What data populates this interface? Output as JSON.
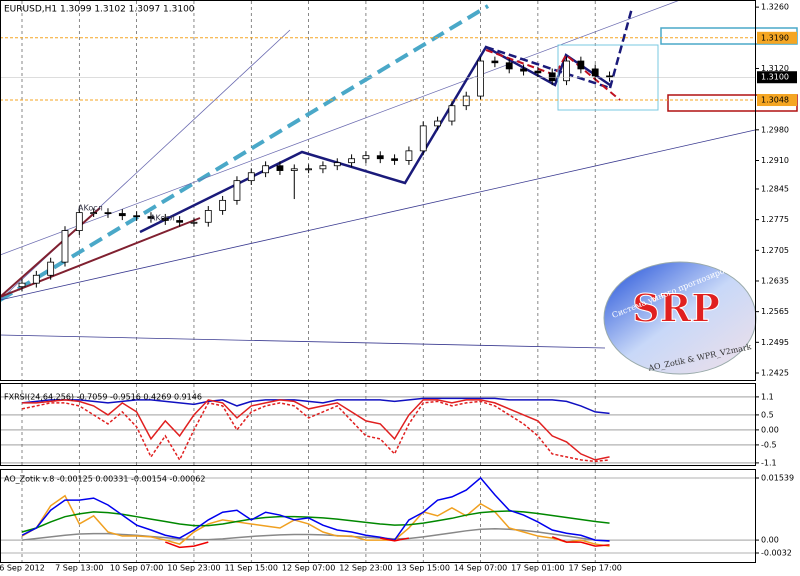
{
  "chart_data": [
    {
      "type": "candlestick",
      "title": "EURUSD,H1  1.3099 1.3102 1.3097 1.3100",
      "categories": [
        "6 Sep 2012",
        null,
        null,
        null,
        "7 Sep 13:00",
        null,
        null,
        null,
        "10 Sep 07:00",
        null,
        null,
        null,
        "10 Sep 23:00",
        null,
        null,
        null,
        "11 Sep 15:00",
        null,
        null,
        null,
        "12 Sep 07:00",
        null,
        null,
        null,
        "12 Sep 23:00",
        null,
        null,
        null,
        "13 Sep 15:00",
        null,
        null,
        null,
        "14 Sep 07:00",
        null,
        null,
        null,
        "17 Sep 01:00",
        null,
        null,
        null,
        "17 Sep 17:00",
        null
      ],
      "open": [
        1.2622,
        1.263,
        1.2648,
        1.2678,
        1.275,
        1.2791,
        1.2791,
        1.2789,
        1.2784,
        1.2782,
        1.2778,
        1.2773,
        1.2769,
        1.2769,
        1.2796,
        1.2819,
        1.2864,
        1.2882,
        1.2898,
        1.2887,
        1.2891,
        1.2891,
        1.2898,
        1.2905,
        1.2914,
        1.2921,
        1.2914,
        1.291,
        1.2932,
        1.2989,
        1.3,
        1.3035,
        1.3057,
        1.3137,
        1.3133,
        1.3119,
        1.3114,
        1.311,
        1.3092,
        1.3137,
        1.3119,
        1.3103
      ],
      "high": [
        1.264,
        1.2658,
        1.2688,
        1.276,
        1.2805,
        1.2801,
        1.2801,
        1.2799,
        1.2794,
        1.2792,
        1.2788,
        1.2783,
        1.2779,
        1.2806,
        1.2829,
        1.2874,
        1.2892,
        1.2908,
        1.2908,
        1.2901,
        1.2901,
        1.2908,
        1.2915,
        1.2924,
        1.2931,
        1.2931,
        1.2924,
        1.2942,
        1.2999,
        1.301,
        1.3045,
        1.3067,
        1.3147,
        1.3147,
        1.3143,
        1.3129,
        1.3124,
        1.312,
        1.3147,
        1.3147,
        1.3129,
        1.3113
      ],
      "low": [
        1.2612,
        1.262,
        1.2638,
        1.2668,
        1.274,
        1.2781,
        1.2779,
        1.2774,
        1.2772,
        1.2768,
        1.2763,
        1.2759,
        1.2759,
        1.2759,
        1.2786,
        1.2809,
        1.2854,
        1.2872,
        1.2877,
        1.2822,
        1.2881,
        1.2881,
        1.2888,
        1.2895,
        1.2904,
        1.2904,
        1.29,
        1.29,
        1.2922,
        1.2979,
        1.299,
        1.3025,
        1.3047,
        1.3123,
        1.3109,
        1.3104,
        1.31,
        1.3082,
        1.3082,
        1.3109,
        1.3093,
        1.309
      ],
      "close": [
        1.263,
        1.2648,
        1.2678,
        1.275,
        1.2791,
        1.2791,
        1.2789,
        1.2784,
        1.2782,
        1.2778,
        1.2773,
        1.2769,
        1.2769,
        1.2796,
        1.2819,
        1.2864,
        1.2882,
        1.2898,
        1.2887,
        1.2891,
        1.2891,
        1.2898,
        1.2905,
        1.2914,
        1.2921,
        1.2914,
        1.291,
        1.2932,
        1.2989,
        1.3,
        1.3035,
        1.3057,
        1.3137,
        1.3133,
        1.3119,
        1.3114,
        1.311,
        1.3092,
        1.3137,
        1.3119,
        1.3103,
        1.31
      ],
      "up_color": "#ffffff",
      "down_color": "#000000",
      "wick_color": "#000000",
      "ylim": [
        1.2409,
        1.3274
      ],
      "yticks": [
        {
          "value": 1.326,
          "label": "1.3260"
        },
        {
          "value": 1.312,
          "label": "1.3120"
        },
        {
          "value": 1.298,
          "label": "1.2980"
        },
        {
          "value": 1.291,
          "label": "1.2910"
        },
        {
          "value": 1.2845,
          "label": "1.2845"
        },
        {
          "value": 1.2775,
          "label": "1.2775"
        },
        {
          "value": 1.2705,
          "label": "1.2705"
        },
        {
          "value": 1.2635,
          "label": "1.2635"
        },
        {
          "value": 1.2565,
          "label": "1.2565"
        },
        {
          "value": 1.2495,
          "label": "1.2495"
        },
        {
          "value": 1.2425,
          "label": "1.2425"
        }
      ],
      "levels": [
        {
          "value": 1.319,
          "label": "1.3190",
          "color": "#f5a623"
        },
        {
          "value": 1.3048,
          "label": "1.3048",
          "color": "#f5a623"
        }
      ],
      "last_price": {
        "value": 1.31,
        "label": "1.3100"
      },
      "annotations": [
        "AKocл",
        "AKocл"
      ]
    },
    {
      "type": "line",
      "title": "FXRSI(24,64,256) -0.7059 -0.9516 0.4269 0.9146",
      "series": [
        {
          "color": "#1010c0",
          "dashed": false,
          "values": [
            0.9,
            0.95,
            1.0,
            1.0,
            1.0,
            0.95,
            0.9,
            0.95,
            1.0,
            1.0,
            0.95,
            0.9,
            0.85,
            0.95,
            1.0,
            0.8,
            0.95,
            1.0,
            1.0,
            1.0,
            0.95,
            0.9,
            1.0,
            1.0,
            1.0,
            1.0,
            0.95,
            1.0,
            1.05,
            1.05,
            1.05,
            1.05,
            1.05,
            1.05,
            1.0,
            1.0,
            1.0,
            1.0,
            0.95,
            0.8,
            0.6,
            0.55
          ]
        },
        {
          "color": "#e02020",
          "dashed": false,
          "values": [
            0.9,
            0.9,
            0.95,
            1.0,
            0.95,
            0.8,
            0.5,
            0.9,
            0.6,
            -0.3,
            0.3,
            -0.2,
            0.5,
            1.0,
            0.9,
            0.4,
            0.8,
            0.9,
            1.0,
            0.95,
            0.7,
            0.8,
            0.9,
            0.6,
            0.3,
            0.2,
            -0.3,
            0.5,
            1.0,
            1.0,
            0.9,
            1.0,
            1.0,
            0.9,
            0.7,
            0.5,
            0.3,
            -0.2,
            -0.4,
            -0.8,
            -1.0,
            -0.9
          ]
        },
        {
          "color": "#e02020",
          "dashed": true,
          "values": [
            0.7,
            0.8,
            0.9,
            0.9,
            0.8,
            0.5,
            0.2,
            0.6,
            0.1,
            -0.9,
            -0.2,
            -1.0,
            0.0,
            0.9,
            0.8,
            0.0,
            0.6,
            0.8,
            0.9,
            0.8,
            0.4,
            0.6,
            0.8,
            0.3,
            -0.2,
            -0.3,
            -0.8,
            0.2,
            0.9,
            0.95,
            0.8,
            0.9,
            0.95,
            0.8,
            0.5,
            0.2,
            -0.2,
            -0.8,
            -0.9,
            -1.0,
            -1.05,
            -1.0
          ]
        }
      ],
      "ylim": [
        -1.17,
        1.53
      ],
      "yticks": [
        1.1,
        0.5,
        {
          "value": 0,
          "label": "0.00"
        },
        -0.5,
        -1.1
      ]
    },
    {
      "type": "line",
      "title": "AO_Zotik v.8 -0.00125 0.00331 -0.00154 -0.00062",
      "series": [
        {
          "color": "#888888",
          "values": [
            0.0,
            0.0004,
            0.0008,
            0.0012,
            0.0015,
            0.0016,
            0.0016,
            0.0014,
            0.0012,
            0.0009,
            0.0006,
            0.0003,
            0.0001,
            0.0001,
            0.0003,
            0.0006,
            0.0009,
            0.0011,
            0.0013,
            0.0014,
            0.0014,
            0.0013,
            0.0011,
            0.0009,
            0.0007,
            0.0005,
            0.0003,
            0.0004,
            0.0008,
            0.0013,
            0.0018,
            0.0023,
            0.0027,
            0.0028,
            0.0027,
            0.0024,
            0.002,
            0.0015,
            0.001,
            0.0005,
            0.0,
            -0.0003
          ]
        },
        {
          "color": "#f0a020",
          "values": [
            0.001,
            0.003,
            0.0085,
            0.011,
            0.004,
            0.006,
            0.002,
            0.001,
            0.001,
            0.0008,
            0.0,
            -0.001,
            0.002,
            0.004,
            0.005,
            0.0045,
            0.004,
            0.0035,
            0.003,
            0.005,
            0.004,
            0.002,
            0.001,
            0.001,
            0.0,
            0.0,
            0.0,
            0.003,
            0.007,
            0.006,
            0.008,
            0.006,
            0.009,
            0.007,
            0.003,
            0.002,
            0.001,
            0.0005,
            -0.0005,
            0.0,
            -0.001,
            -0.0015
          ]
        },
        {
          "color": "#008800",
          "values": [
            0.002,
            0.003,
            0.0045,
            0.0058,
            0.0065,
            0.007,
            0.0068,
            0.0064,
            0.0058,
            0.0052,
            0.0046,
            0.004,
            0.0036,
            0.0036,
            0.004,
            0.0046,
            0.0052,
            0.0056,
            0.0058,
            0.0058,
            0.0057,
            0.0055,
            0.0052,
            0.0048,
            0.0044,
            0.004,
            0.0037,
            0.0038,
            0.0042,
            0.0048,
            0.0054,
            0.0062,
            0.0068,
            0.0071,
            0.0072,
            0.007,
            0.0066,
            0.0061,
            0.0056,
            0.0051,
            0.0046,
            0.0042
          ]
        },
        {
          "color": "#0000ee",
          "values": [
            0.0012,
            0.003,
            0.0074,
            0.0099,
            0.0099,
            0.0104,
            0.0087,
            0.0062,
            0.0037,
            0.0025,
            0.0012,
            0.0005,
            0.0025,
            0.005,
            0.0069,
            0.0074,
            0.005,
            0.0069,
            0.0062,
            0.005,
            0.0055,
            0.0037,
            0.0025,
            0.002,
            0.0012,
            0.0007,
            0.0,
            0.005,
            0.0069,
            0.0099,
            0.0107,
            0.0124,
            0.0154,
            0.0112,
            0.0074,
            0.0062,
            0.0045,
            0.0025,
            0.0017,
            0.0012,
            0.0,
            -0.0002
          ]
        },
        {
          "color": "#ee0000",
          "values": [
            null,
            null,
            null,
            null,
            null,
            null,
            null,
            null,
            null,
            null,
            -0.0005,
            -0.0018,
            -0.0015,
            -0.0005,
            null,
            null,
            null,
            null,
            null,
            null,
            null,
            null,
            null,
            null,
            null,
            0.0005,
            -0.0002,
            0.0005,
            null,
            null,
            null,
            null,
            null,
            null,
            null,
            null,
            null,
            0.0008,
            -0.0005,
            -0.0005,
            -0.0015,
            -0.0012
          ]
        }
      ],
      "ylim": [
        -0.00543,
        0.01737
      ],
      "yticks": [
        0.01539,
        {
          "value": 0,
          "label": "0.00"
        },
        -0.0032
      ]
    }
  ],
  "logo": {
    "title": "SRP",
    "subtitle": "Система умного прогнозирования",
    "caption": "AO_Zotik & WPR_V2mark"
  }
}
